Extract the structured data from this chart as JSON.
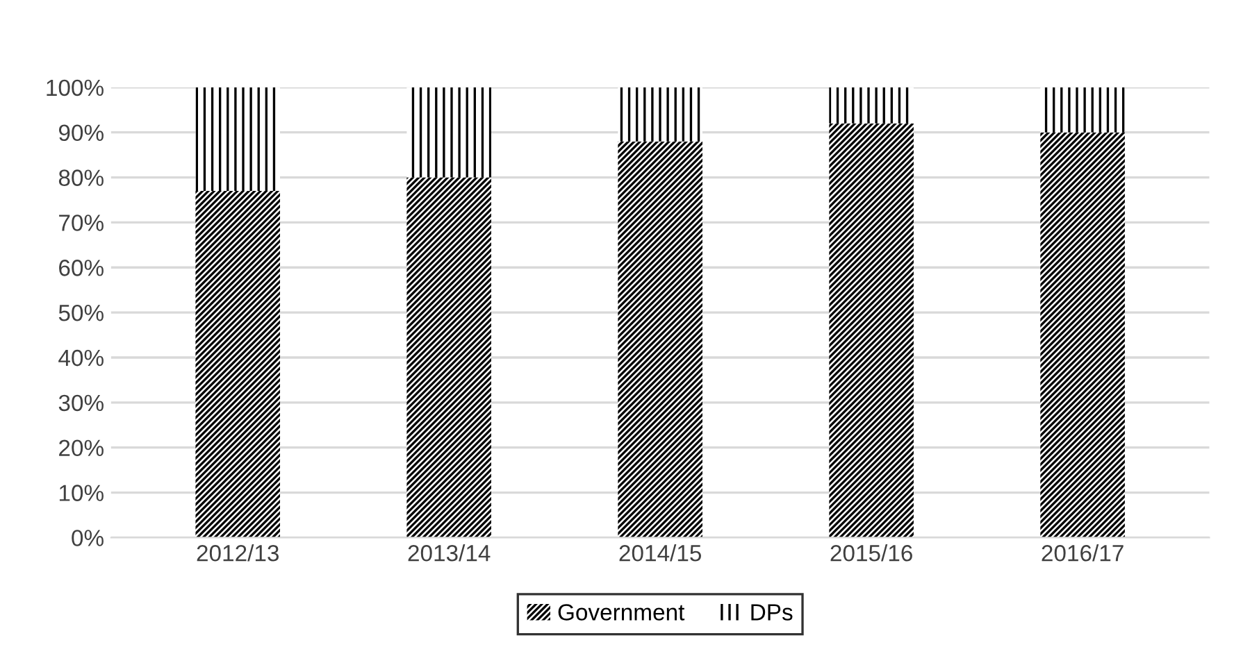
{
  "chart_data": {
    "type": "bar",
    "stacked": true,
    "categories": [
      "2012/13",
      "2013/14",
      "2014/15",
      "2015/16",
      "2016/17"
    ],
    "series": [
      {
        "name": "Government",
        "color": "#000000",
        "values": [
          77,
          80,
          88,
          92,
          90
        ]
      },
      {
        "name": "DPs",
        "color": "#000000",
        "values": [
          23,
          20,
          12,
          8,
          10
        ]
      }
    ],
    "ylim": [
      0,
      100
    ],
    "yticks": [
      {
        "value": 0,
        "label": "0%"
      },
      {
        "value": 10,
        "label": "10%"
      },
      {
        "value": 20,
        "label": "20%"
      },
      {
        "value": 30,
        "label": "30%"
      },
      {
        "value": 40,
        "label": "40%"
      },
      {
        "value": 50,
        "label": "50%"
      },
      {
        "value": 60,
        "label": "60%"
      },
      {
        "value": 70,
        "label": "70%"
      },
      {
        "value": 80,
        "label": "80%"
      },
      {
        "value": 90,
        "label": "90%"
      },
      {
        "value": 100,
        "label": "100%"
      }
    ],
    "grid": "y",
    "legend": "bottom"
  }
}
